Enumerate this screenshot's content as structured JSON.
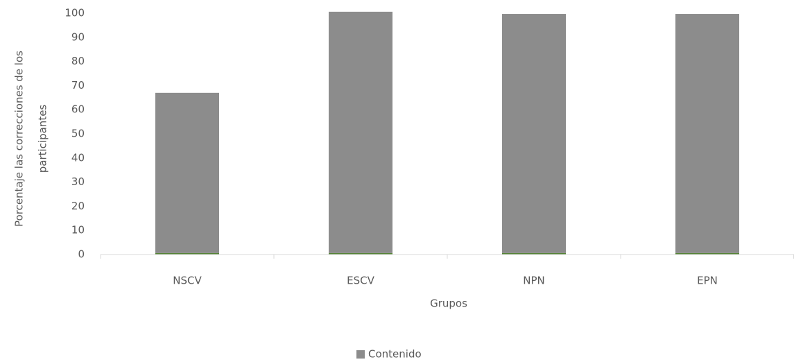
{
  "chart_data": {
    "type": "bar",
    "stacked": true,
    "categories": [
      "NSCV",
      "ESCV",
      "NPN",
      "EPN"
    ],
    "series": [
      {
        "color": "#548235",
        "values": [
          0.6,
          0.6,
          0.6,
          0.6
        ]
      },
      {
        "name": "Contenido",
        "color": "#8c8c8c",
        "values": [
          66.4,
          100,
          99.1,
          99.1
        ]
      }
    ],
    "ylim": [
      0,
      100
    ],
    "yticks": [
      0,
      10,
      20,
      30,
      40,
      50,
      60,
      70,
      80,
      90,
      100
    ],
    "x_label": "Grupos",
    "y_label": [
      "Porcentaje las correcciones de los",
      "participantes"
    ],
    "grid": false,
    "legend": "bottom"
  }
}
